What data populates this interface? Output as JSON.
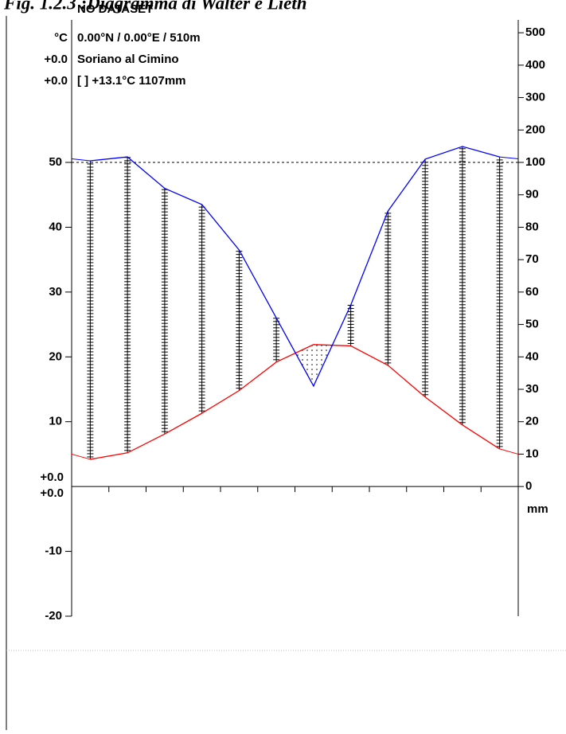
{
  "title": "Fig. 1.2.3 :Diagramma di Walter e Lieth",
  "chart_data": {
    "type": "walter-lieth",
    "dataset": "NO DATASET",
    "temp_unit": "°C",
    "location": "0.00°N / 0.00°E / 510m",
    "station": "Soriano al Cimino",
    "extreme_labels": [
      "+0.0",
      "+0.0"
    ],
    "summary": "[ ]  +13.1°C   1107mm",
    "zero_labels": [
      "+0.0",
      "+0.0"
    ],
    "precip_unit": "mm",
    "categories": [
      null,
      null,
      null,
      null,
      null,
      null,
      null,
      null,
      null,
      null,
      null,
      null
    ],
    "series": [
      {
        "name": "temperature",
        "color": "#ff0000",
        "values": [
          4.2,
          5.2,
          8.1,
          11.3,
          14.8,
          19.2,
          21.9,
          21.7,
          18.7,
          13.8,
          9.5,
          5.8
        ]
      },
      {
        "name": "precipitation",
        "color": "#0000ff",
        "axis": "y2",
        "values": [
          105,
          117,
          92,
          87,
          73,
          52,
          31,
          56,
          85,
          110,
          149,
          117
        ]
      }
    ],
    "ylim": [
      -20,
      50
    ],
    "yticks": [
      -20,
      -10,
      10,
      20,
      30,
      40,
      50
    ],
    "y2lim": [
      0,
      500
    ],
    "y2ticks": [
      0,
      10,
      20,
      30,
      40,
      50,
      60,
      70,
      80,
      90,
      100,
      200,
      300,
      400,
      500
    ],
    "y2_scale_change": 100
  }
}
